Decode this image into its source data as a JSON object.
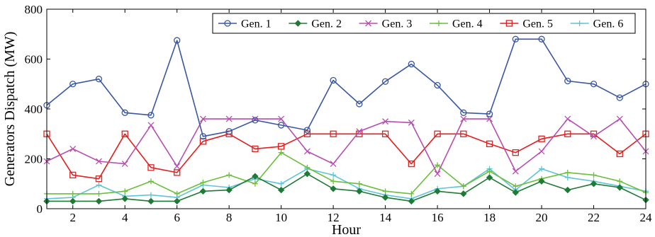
{
  "chart_data": {
    "type": "line",
    "xlabel": "Hour",
    "ylabel": "Generators Dispatch (MW)",
    "xlim": [
      1,
      24
    ],
    "ylim": [
      0,
      800
    ],
    "xticks": [
      2,
      4,
      6,
      8,
      10,
      12,
      14,
      16,
      18,
      20,
      22,
      24
    ],
    "yticks": [
      0,
      200,
      400,
      600,
      800
    ],
    "grid": false,
    "legend_position": "top-right",
    "x": [
      1,
      2,
      3,
      4,
      5,
      6,
      7,
      8,
      9,
      10,
      11,
      12,
      13,
      14,
      15,
      16,
      17,
      18,
      19,
      20,
      21,
      22,
      23,
      24
    ],
    "series": [
      {
        "name": "Gen. 1",
        "color": "#3a57a5",
        "marker": "circle",
        "values": [
          415,
          500,
          520,
          385,
          375,
          675,
          290,
          310,
          355,
          335,
          315,
          515,
          420,
          510,
          580,
          495,
          385,
          380,
          680,
          680,
          512,
          500,
          445,
          500
        ]
      },
      {
        "name": "Gen. 2",
        "color": "#1f7a35",
        "marker": "diamond",
        "values": [
          30,
          30,
          30,
          40,
          30,
          30,
          70,
          75,
          130,
          75,
          140,
          80,
          70,
          45,
          30,
          70,
          60,
          125,
          65,
          110,
          75,
          100,
          85,
          35
        ]
      },
      {
        "name": "Gen. 3",
        "color": "#b84fb0",
        "marker": "x",
        "values": [
          190,
          240,
          190,
          180,
          335,
          170,
          360,
          360,
          360,
          360,
          230,
          180,
          310,
          350,
          345,
          140,
          360,
          360,
          150,
          230,
          360,
          290,
          360,
          230
        ]
      },
      {
        "name": "Gen. 4",
        "color": "#6bbf3b",
        "marker": "plus",
        "values": [
          60,
          60,
          60,
          70,
          110,
          60,
          105,
          135,
          100,
          225,
          165,
          110,
          100,
          70,
          60,
          175,
          90,
          150,
          90,
          120,
          145,
          135,
          110,
          65
        ]
      },
      {
        "name": "Gen. 5",
        "color": "#e51e1e",
        "marker": "square",
        "values": [
          300,
          135,
          120,
          300,
          165,
          145,
          270,
          300,
          240,
          250,
          300,
          300,
          300,
          300,
          180,
          300,
          300,
          260,
          225,
          280,
          300,
          300,
          220,
          300
        ]
      },
      {
        "name": "Gen. 6",
        "color": "#5ec4d8",
        "marker": "plus",
        "values": [
          40,
          45,
          95,
          50,
          55,
          45,
          95,
          85,
          120,
          100,
          160,
          135,
          80,
          55,
          40,
          80,
          90,
          160,
          75,
          160,
          125,
          110,
          90,
          70
        ]
      }
    ]
  }
}
